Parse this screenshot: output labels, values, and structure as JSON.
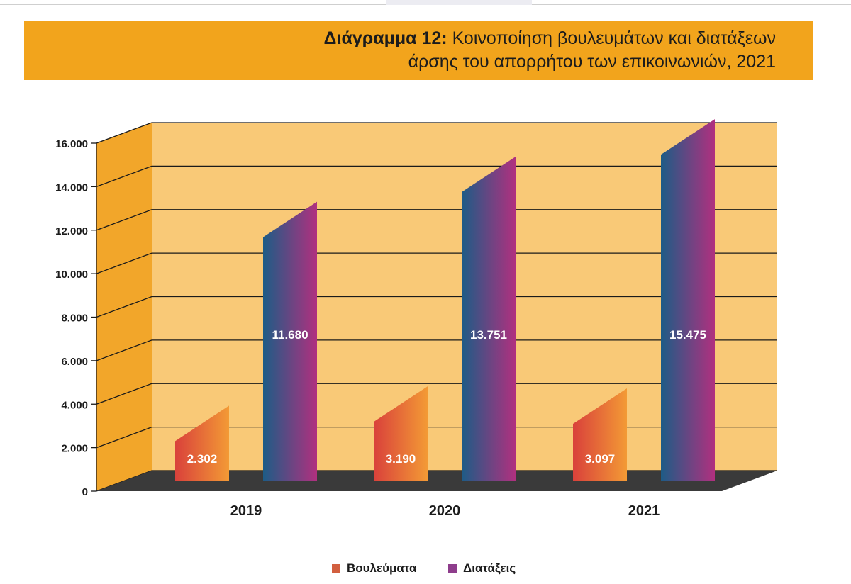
{
  "header": {
    "title_label": "Διάγραμμα 12:",
    "title_line1": "Κοινοποίηση βουλευμάτων και διατάξεων",
    "title_line2": "άρσης του απορρήτου των επικοινωνιών, 2021"
  },
  "chart_data": {
    "type": "bar",
    "categories": [
      "2019",
      "2020",
      "2021"
    ],
    "series": [
      {
        "name": "Βουλεύματα",
        "values": [
          2302,
          3190,
          3097
        ],
        "labels": [
          "2.302",
          "3.190",
          "3.097"
        ]
      },
      {
        "name": "Διατάξεις",
        "values": [
          11680,
          13751,
          15475
        ],
        "labels": [
          "11.680",
          "13.751",
          "15.475"
        ]
      }
    ],
    "yticks": [
      "0",
      "2.000",
      "4.000",
      "6.000",
      "8.000",
      "10.000",
      "12.000",
      "14.000",
      "16.000"
    ],
    "ylim": [
      0,
      16000
    ],
    "grid": true,
    "legend_position": "bottom",
    "colors": {
      "wall": "#f9c977",
      "side_wall": "#f2a62a",
      "floor": "#3a3a3a",
      "grid": "#1a1a1a",
      "series1_dark": "#d9413b",
      "series1_light": "#f39a35",
      "series2_dark": "#1d5c86",
      "series2_light": "#b1307f",
      "legend_series1": "#d25f3f",
      "legend_series2": "#8e3d8c"
    }
  }
}
